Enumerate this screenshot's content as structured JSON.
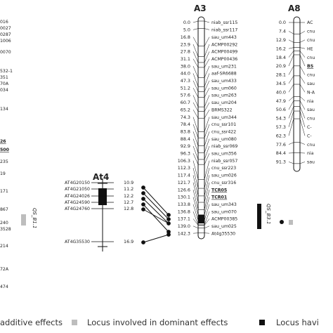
{
  "left_partial": {
    "labels": [
      "016",
      "0027",
      "0287",
      "1006",
      "0070",
      "532-1",
      "351",
      "70A",
      "034",
      "134",
      "26",
      "500",
      "235",
      "19",
      "171",
      "867",
      "240",
      "3528",
      "214",
      "72A",
      "474"
    ],
    "qtl_label": "QS_B1.1"
  },
  "at4": {
    "title": "At4",
    "markers": [
      {
        "name": "AT4G20150",
        "pos": "10.9"
      },
      {
        "name": "AT4G21050",
        "pos": "11.2"
      },
      {
        "name": "AT4G24026",
        "pos": "12.2"
      },
      {
        "name": "AT4G24590",
        "pos": "12.7"
      },
      {
        "name": "AT4G24760",
        "pos": "12.8"
      },
      {
        "name": "AT4G35530",
        "pos": "16.9"
      }
    ]
  },
  "a3": {
    "title": "A3",
    "markers": [
      {
        "pos": "0.0",
        "name": "niab_ssr115",
        "bold": false
      },
      {
        "pos": "5.0",
        "name": "niab_ssr117",
        "bold": false
      },
      {
        "pos": "16.8",
        "name": "sau_um443",
        "bold": false
      },
      {
        "pos": "23.9",
        "name": "ACMP00292",
        "bold": false
      },
      {
        "pos": "27.8",
        "name": "ACMP00499",
        "bold": false
      },
      {
        "pos": "31.1",
        "name": "ACMP00436",
        "bold": false
      },
      {
        "pos": "38.0",
        "name": "sau_um231",
        "bold": false
      },
      {
        "pos": "44.0",
        "name": "aaf-SR6688",
        "bold": false
      },
      {
        "pos": "47.3",
        "name": "sau_um433",
        "bold": false
      },
      {
        "pos": "51.2",
        "name": "sau_um060",
        "bold": false
      },
      {
        "pos": "57.6",
        "name": "sau_um263",
        "bold": false
      },
      {
        "pos": "60.7",
        "name": "sau_um204",
        "bold": false
      },
      {
        "pos": "65.2",
        "name": "BRMS322",
        "bold": false
      },
      {
        "pos": "74.3",
        "name": "sau_um344",
        "bold": false
      },
      {
        "pos": "78.4",
        "name": "cnu_ssr101",
        "bold": false
      },
      {
        "pos": "83.8",
        "name": "cnu_ssr422",
        "bold": false
      },
      {
        "pos": "88.4",
        "name": "sau_um080",
        "bold": false
      },
      {
        "pos": "92.9",
        "name": "niab_ssr069",
        "bold": false
      },
      {
        "pos": "96.3",
        "name": "sau_um356",
        "bold": false
      },
      {
        "pos": "106.3",
        "name": "niab_ssr057",
        "bold": false
      },
      {
        "pos": "112.3",
        "name": "cnu_ssr223",
        "bold": false
      },
      {
        "pos": "117.4",
        "name": "sau_um026",
        "bold": false
      },
      {
        "pos": "121.7",
        "name": "cnu_ssr316",
        "bold": false
      },
      {
        "pos": "126.6",
        "name": "TCR05",
        "bold": true
      },
      {
        "pos": "130.1",
        "name": "TCR01",
        "bold": true
      },
      {
        "pos": "133.8",
        "name": "sau_um343",
        "bold": false
      },
      {
        "pos": "136.8",
        "name": "sau_um070",
        "bold": false
      },
      {
        "pos": "137.1",
        "name": "ACMP00385",
        "bold": false
      },
      {
        "pos": "139.0",
        "name": "sau_um025",
        "bold": false
      },
      {
        "pos": "142.3",
        "name": "At4g35530",
        "bold": false
      }
    ],
    "qtl_label": "QS_B3.1"
  },
  "a8": {
    "title": "A8",
    "markers": [
      {
        "pos": "0.0",
        "name": "AC",
        "bold": false
      },
      {
        "pos": "7.4",
        "name": "cnu",
        "bold": false
      },
      {
        "pos": "12.9",
        "name": "cnu",
        "bold": false
      },
      {
        "pos": "16.2",
        "name": "HE",
        "bold": false
      },
      {
        "pos": "18.4",
        "name": "cnu",
        "bold": false
      },
      {
        "pos": "20.9",
        "name": "BS",
        "bold": true
      },
      {
        "pos": "28.1",
        "name": "cnu",
        "bold": false
      },
      {
        "pos": "34.5",
        "name": "sau",
        "bold": false
      },
      {
        "pos": "40.0",
        "name": "N-A",
        "bold": false
      },
      {
        "pos": "47.9",
        "name": "nia",
        "bold": false
      },
      {
        "pos": "50.6",
        "name": "sau",
        "bold": false
      },
      {
        "pos": "54.3",
        "name": "cnu",
        "bold": false
      },
      {
        "pos": "57.3",
        "name": "C-",
        "bold": false
      },
      {
        "pos": "62.3",
        "name": "C-",
        "bold": false
      },
      {
        "pos": "77.6",
        "name": "cnu",
        "bold": false
      },
      {
        "pos": "84.4",
        "name": "nia",
        "bold": false
      },
      {
        "pos": "91.3",
        "name": "sau",
        "bold": false
      }
    ]
  },
  "legend": {
    "item1": "additive effects",
    "item2": "Locus involved in dominant effects",
    "item3": "Locus havi"
  },
  "colors": {
    "additive": "#bdbdbd",
    "dominant": "#111111",
    "line": "#111111"
  }
}
